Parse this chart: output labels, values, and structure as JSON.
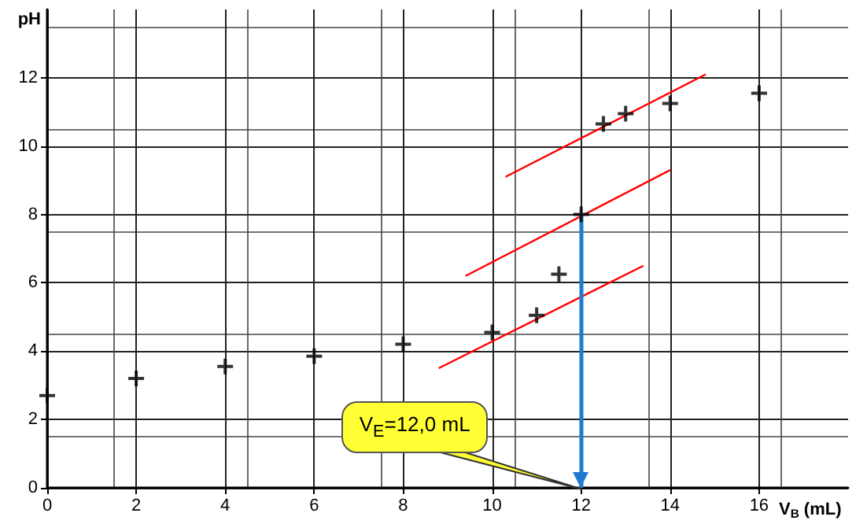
{
  "chart_data": {
    "type": "scatter",
    "xlabel": "V$_{B}$ (mL)",
    "ylabel": "pH",
    "x": [
      0,
      2,
      4,
      6,
      8,
      10,
      11,
      11.5,
      12,
      12.5,
      13,
      14,
      16
    ],
    "series": [
      {
        "color": "#000000",
        "values": [
          2.7,
          3.2,
          3.55,
          3.85,
          4.2,
          4.55,
          5.05,
          6.25,
          8.0,
          10.65,
          10.95,
          11.25,
          11.55
        ]
      },
      {
        "type": "line",
        "color": "#ff0000",
        "marker": "none",
        "x": [
          8.8,
          13.4
        ],
        "values": [
          3.5,
          6.5
        ]
      },
      {
        "type": "line",
        "color": "#ff0000",
        "marker": "none",
        "x": [
          9.4,
          14.0
        ],
        "values": [
          6.2,
          9.3
        ]
      },
      {
        "type": "line",
        "color": "#ff0000",
        "marker": "none",
        "x": [
          10.3,
          14.8
        ],
        "values": [
          9.1,
          12.1
        ]
      }
    ],
    "xlim": [
      0,
      18
    ],
    "ylim": [
      0,
      14
    ],
    "xticks": [
      0,
      2,
      4,
      6,
      8,
      10,
      12,
      14,
      16
    ],
    "yticks": [
      0,
      2,
      4,
      6,
      8,
      10,
      12
    ],
    "grid": true,
    "marker": "cross",
    "line_style": "solid",
    "ref_lines": [
      {
        "axis": "x",
        "value": 12,
        "label": "V$_{E}$=12,0 mL",
        "color": "#1e7bd0"
      }
    ]
  }
}
